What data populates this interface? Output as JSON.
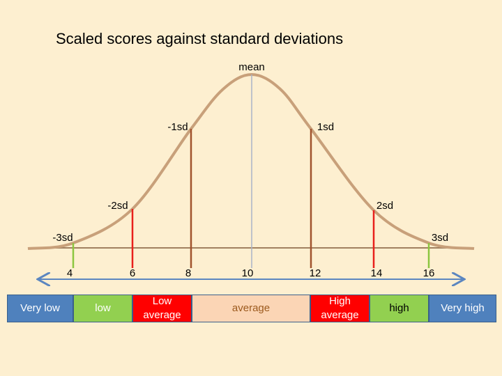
{
  "title": "Scaled scores against standard deviations",
  "markers": [
    {
      "label": "-3sd"
    },
    {
      "label": "-2sd"
    },
    {
      "label": "-1sd"
    },
    {
      "label": "mean"
    },
    {
      "label": "1sd"
    },
    {
      "label": "2sd"
    },
    {
      "label": "3sd"
    }
  ],
  "scale": [
    4,
    6,
    8,
    10,
    12,
    14,
    16
  ],
  "bands": [
    "Very low",
    "low",
    "Low average",
    "average",
    "High average",
    "high",
    "Very high"
  ]
}
